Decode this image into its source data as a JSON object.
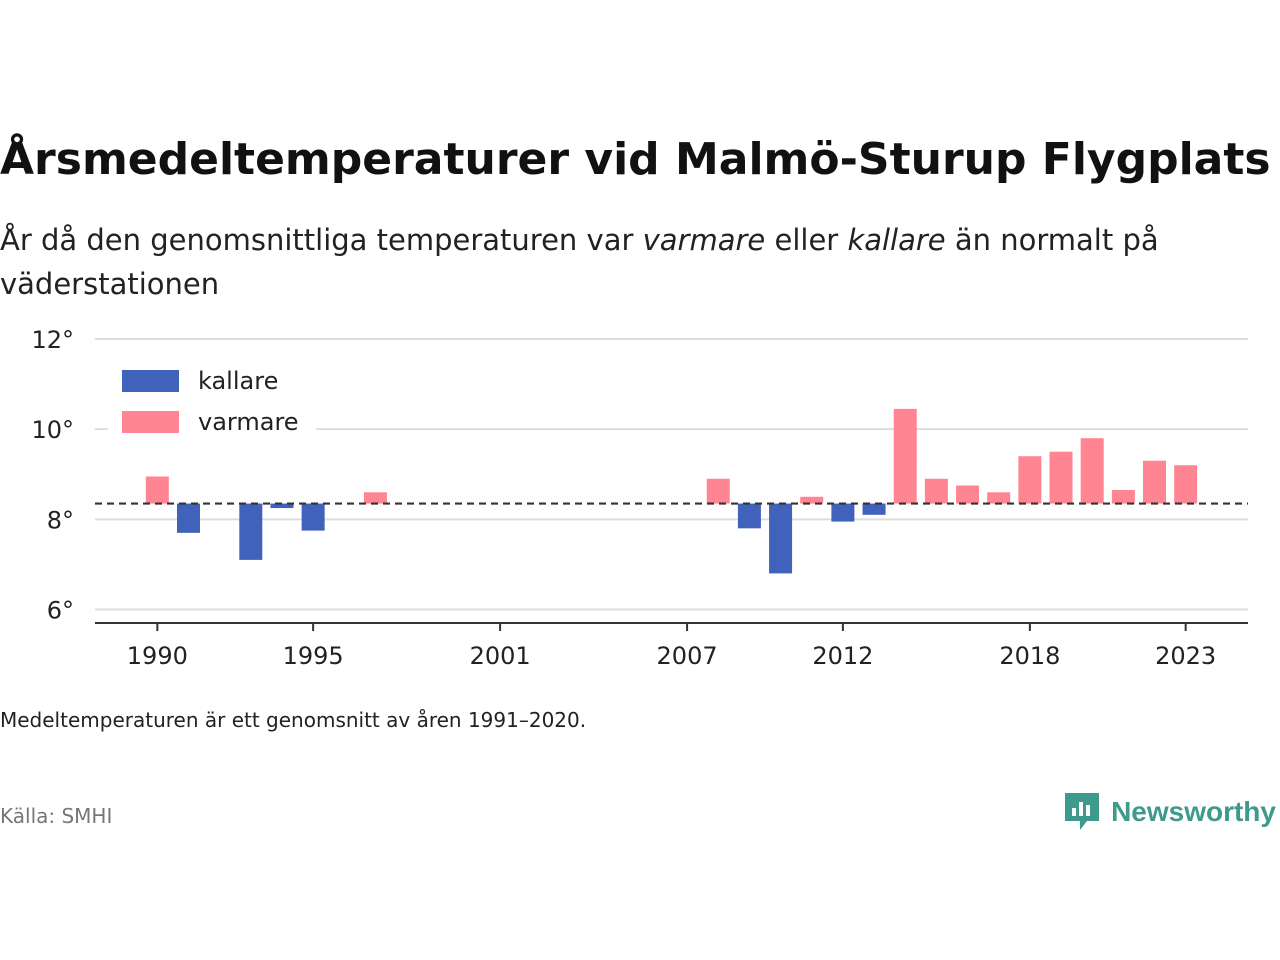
{
  "title": "Årsmedeltemperaturer vid Malmö-Sturup Flygplats",
  "subtitle": {
    "before": "År då den genomsnittliga temperaturen var ",
    "warm_word": "varmare",
    "middle": " eller ",
    "cold_word": "kallare",
    "after": " än normalt på väderstationen"
  },
  "note": "Medeltemperaturen är ett genomsnitt av åren 1991–2020.",
  "source": "Källa: SMHI",
  "brand": {
    "name": "Newsworthy",
    "icon": "newsworthy-logo-icon"
  },
  "colors": {
    "warmer": "#ff8593",
    "colder": "#4062bb",
    "baseline": "#333333",
    "grid": "#dddddd",
    "brand": "#3f9a8e"
  },
  "chart_data": {
    "type": "bar",
    "baseline": 8.35,
    "ylim": [
      5.7,
      12.2
    ],
    "xlim": [
      1988,
      2025
    ],
    "yticks": [
      6,
      8,
      10,
      12
    ],
    "ytick_labels": [
      "6°",
      "8°",
      "10°",
      "12°"
    ],
    "xticks": [
      1990,
      1995,
      2001,
      2007,
      2012,
      2018,
      2023
    ],
    "xtick_labels": [
      "1990",
      "1995",
      "2001",
      "2007",
      "2012",
      "2018",
      "2023"
    ],
    "legend": {
      "position": "top-left",
      "items": [
        {
          "label": "kallare",
          "key": "colder"
        },
        {
          "label": "varmare",
          "key": "warmer"
        }
      ]
    },
    "grid": true,
    "x": [
      1990,
      1991,
      1993,
      1994,
      1995,
      1997,
      2008,
      2009,
      2010,
      2011,
      2012,
      2013,
      2014,
      2015,
      2016,
      2017,
      2018,
      2019,
      2020,
      2021,
      2022,
      2023
    ],
    "values": [
      8.95,
      7.7,
      7.1,
      8.25,
      7.75,
      8.6,
      8.9,
      7.8,
      6.8,
      8.5,
      7.95,
      8.1,
      10.45,
      8.9,
      8.75,
      8.6,
      9.4,
      9.5,
      9.8,
      8.65,
      9.3,
      9.2
    ]
  }
}
